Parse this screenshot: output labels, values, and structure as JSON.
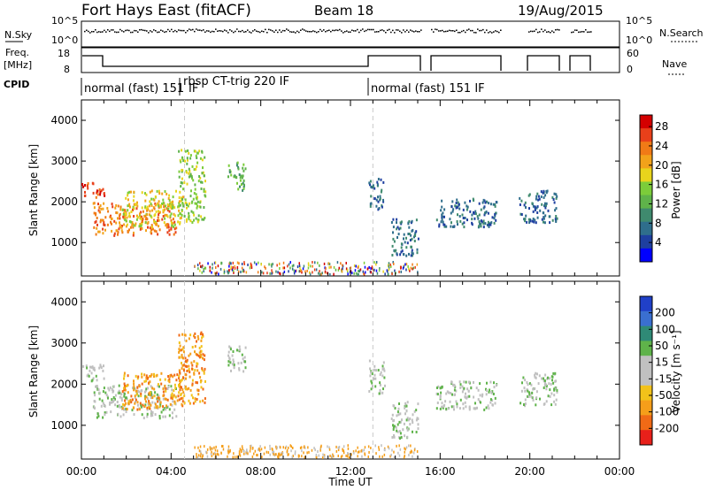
{
  "header": {
    "station": "Fort Hays East (fitACF)",
    "beam": "Beam 18",
    "date": "19/Aug/2015"
  },
  "strip": {
    "nsky_label": "N.Sky",
    "nsky_ticks": [
      "10^5",
      "10^0"
    ],
    "nsearch_label": "N.Search",
    "nsearch_ticks": [
      "10^5",
      "10^0"
    ],
    "freq_label": "Freq.",
    "freq_unit": "[MHz]",
    "freq_ticks": [
      "18",
      "8"
    ],
    "nave_label": "Nave",
    "nave_ticks": [
      "60",
      "0"
    ],
    "cpid_label": "CPID",
    "modes": [
      "normal (fast) 151",
      "IF",
      "rbsp CT-trig 220 IF",
      "normal (fast) 151 IF"
    ]
  },
  "chart_data": [
    {
      "type": "heatmap",
      "name": "Power",
      "xlabel": "",
      "ylabel": "Slant Range [km]",
      "xlim": [
        0,
        24
      ],
      "ylim": [
        180,
        4500
      ],
      "yticks": [
        "1000",
        "2000",
        "3000",
        "4000"
      ],
      "colorbar_label": "Power [dB]",
      "colorbar_ticks": [
        "4",
        "8",
        "12",
        "16",
        "20",
        "24",
        "28"
      ],
      "colorbar_colors": [
        "#0000ff",
        "#1e3fa0",
        "#2f6e8c",
        "#3f8a6e",
        "#5fb34a",
        "#7ccc3a",
        "#e8d41c",
        "#f2a21a",
        "#f07a16",
        "#e8401a",
        "#d40000"
      ],
      "clusters": [
        {
          "x": [
            0.0,
            1.0
          ],
          "y": [
            2100,
            2500
          ],
          "value": 26
        },
        {
          "x": [
            0.5,
            4.2
          ],
          "y": [
            1200,
            2000
          ],
          "value": 24
        },
        {
          "x": [
            1.8,
            4.5
          ],
          "y": [
            1400,
            2300
          ],
          "value": 18
        },
        {
          "x": [
            4.3,
            5.5
          ],
          "y": [
            1500,
            3300
          ],
          "value": 14
        },
        {
          "x": [
            6.5,
            7.3
          ],
          "y": [
            2300,
            3000
          ],
          "value": 12
        },
        {
          "x": [
            12.8,
            13.5
          ],
          "y": [
            1800,
            2600
          ],
          "value": 8
        },
        {
          "x": [
            13.8,
            15.0
          ],
          "y": [
            700,
            1600
          ],
          "value": 8
        },
        {
          "x": [
            15.8,
            18.5
          ],
          "y": [
            1400,
            2100
          ],
          "value": 6
        },
        {
          "x": [
            19.5,
            21.2
          ],
          "y": [
            1500,
            2300
          ],
          "value": 8
        }
      ]
    },
    {
      "type": "heatmap",
      "name": "Velocity",
      "xlabel": "Time UT",
      "ylabel": "Slant Range [km]",
      "xlim": [
        0,
        24
      ],
      "ylim": [
        180,
        4500
      ],
      "xticks": [
        "00:00",
        "04:00",
        "08:00",
        "12:00",
        "16:00",
        "20:00",
        "00:00"
      ],
      "yticks": [
        "1000",
        "2000",
        "3000",
        "4000"
      ],
      "colorbar_label": "Velocity [m s⁻¹]",
      "colorbar_ticks": [
        "200",
        "100",
        "50",
        "15",
        "-15",
        "-50",
        "-100",
        "-200"
      ],
      "colorbar_colors": [
        "#2040c8",
        "#3a6fd0",
        "#2f8a76",
        "#5fb34a",
        "#c0c0c0",
        "#c0c0c0",
        "#f2c21a",
        "#f59e1a",
        "#f06a16",
        "#e8201a"
      ],
      "clusters": [
        {
          "x": [
            0.0,
            1.0
          ],
          "y": [
            2100,
            2500
          ],
          "value": 0
        },
        {
          "x": [
            0.5,
            4.2
          ],
          "y": [
            1200,
            2000
          ],
          "value": 0
        },
        {
          "x": [
            1.8,
            4.5
          ],
          "y": [
            1400,
            2300
          ],
          "value": -40
        },
        {
          "x": [
            4.3,
            5.5
          ],
          "y": [
            1500,
            3300
          ],
          "value": -50
        },
        {
          "x": [
            6.5,
            7.3
          ],
          "y": [
            2300,
            3000
          ],
          "value": 0
        },
        {
          "x": [
            12.8,
            13.5
          ],
          "y": [
            1800,
            2600
          ],
          "value": 0
        },
        {
          "x": [
            13.8,
            15.0
          ],
          "y": [
            700,
            1600
          ],
          "value": 0
        },
        {
          "x": [
            15.8,
            18.5
          ],
          "y": [
            1400,
            2100
          ],
          "value": 0
        },
        {
          "x": [
            19.5,
            21.2
          ],
          "y": [
            1500,
            2300
          ],
          "value": 0
        }
      ]
    }
  ]
}
